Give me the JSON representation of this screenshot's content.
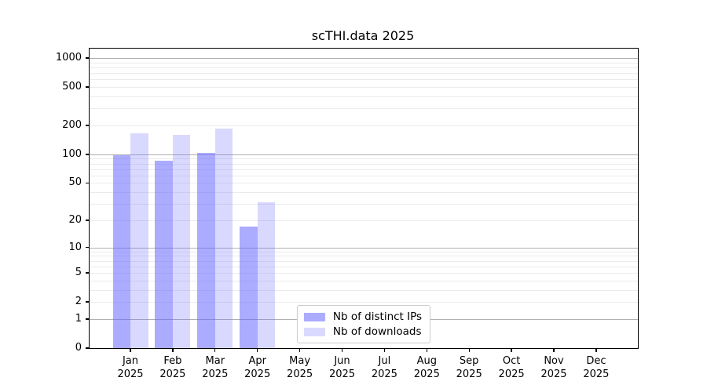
{
  "title": "scTHI.data 2025",
  "chart_data": {
    "type": "bar",
    "title": "scTHI.data 2025",
    "xlabel": "",
    "ylabel": "",
    "categories": [
      "Jan",
      "Feb",
      "Mar",
      "Apr",
      "May",
      "Jun",
      "Jul",
      "Aug",
      "Sep",
      "Oct",
      "Nov",
      "Dec"
    ],
    "year": "2025",
    "series": [
      {
        "name": "Nb of distinct IPs",
        "color": "rgba(102,102,255,0.55)",
        "values": [
          98,
          85,
          103,
          17,
          0,
          0,
          0,
          0,
          0,
          0,
          0,
          0
        ]
      },
      {
        "name": "Nb of downloads",
        "color": "rgba(102,102,255,0.25)",
        "values": [
          165,
          160,
          185,
          31,
          0,
          0,
          0,
          0,
          0,
          0,
          0,
          0
        ]
      }
    ],
    "yticks": [
      0,
      1,
      2,
      5,
      10,
      20,
      50,
      100,
      200,
      500,
      1000
    ],
    "scale": "log1p",
    "ylim": [
      0,
      1253
    ],
    "grid": true,
    "legend_position": "lower center",
    "colors": {
      "major_grid": "#b0b0b0",
      "minor_grid": "#ebebeb",
      "frame": "#000000",
      "text": "#000000"
    }
  }
}
